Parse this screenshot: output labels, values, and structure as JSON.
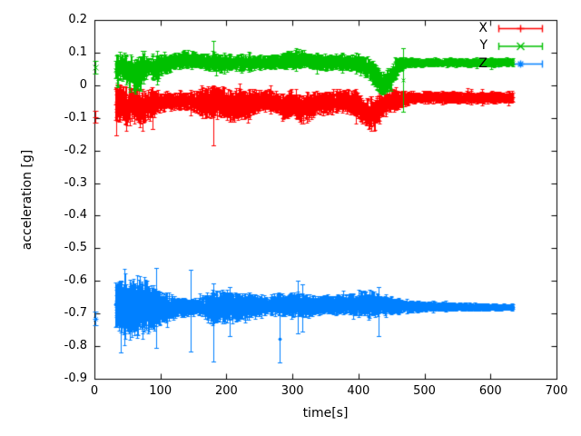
{
  "colors": {
    "background": "#ffffff",
    "axis": "#000000",
    "text": "#000000"
  },
  "chart_data": {
    "type": "scatter-errorbars",
    "title": "",
    "xlabel": "time[s]",
    "ylabel": "acceleration [g]",
    "xlim": [
      0,
      700
    ],
    "ylim": [
      -0.9,
      0.2
    ],
    "x_ticks": [
      0,
      100,
      200,
      300,
      400,
      500,
      600,
      700
    ],
    "x_tick_labels": [
      "0",
      "100",
      "200",
      "300",
      "400",
      "500",
      "600",
      "700"
    ],
    "y_ticks": [
      0.2,
      0.1,
      0,
      -0.1,
      -0.2,
      -0.3,
      -0.4,
      -0.5,
      -0.6,
      -0.7,
      -0.8,
      -0.9
    ],
    "y_tick_labels": [
      "0.2",
      "0.1",
      "0",
      "-0.1",
      "-0.2",
      "-0.3",
      "-0.4",
      "-0.5",
      "-0.6",
      "-0.7",
      "-0.8",
      "-0.9"
    ],
    "grid": false,
    "legend": {
      "position": "top-right-inside",
      "entries": [
        "X",
        "Y",
        "Z"
      ]
    },
    "t_range": [
      32,
      634
    ],
    "series": [
      {
        "name": "X",
        "color": "#ff0000",
        "marker": "plus",
        "style": "errorbars",
        "approx_mean": -0.05,
        "start_point": {
          "t": 1,
          "value": -0.097,
          "err": 0.018
        },
        "band": [
          [
            32,
            -0.06,
            0.06
          ],
          [
            40,
            -0.055,
            0.05
          ],
          [
            50,
            -0.07,
            0.05
          ],
          [
            60,
            -0.05,
            0.045
          ],
          [
            72,
            -0.075,
            0.05
          ],
          [
            82,
            -0.055,
            0.045
          ],
          [
            95,
            -0.05,
            0.032
          ],
          [
            110,
            -0.048,
            0.022
          ],
          [
            130,
            -0.048,
            0.02
          ],
          [
            150,
            -0.05,
            0.028
          ],
          [
            165,
            -0.052,
            0.038
          ],
          [
            180,
            -0.05,
            0.042
          ],
          [
            195,
            -0.055,
            0.04
          ],
          [
            208,
            -0.065,
            0.045
          ],
          [
            220,
            -0.055,
            0.038
          ],
          [
            235,
            -0.06,
            0.04
          ],
          [
            248,
            -0.05,
            0.028
          ],
          [
            262,
            -0.045,
            0.025
          ],
          [
            275,
            -0.055,
            0.032
          ],
          [
            288,
            -0.07,
            0.035
          ],
          [
            300,
            -0.055,
            0.035
          ],
          [
            313,
            -0.075,
            0.037
          ],
          [
            325,
            -0.065,
            0.035
          ],
          [
            340,
            -0.05,
            0.03
          ],
          [
            355,
            -0.055,
            0.03
          ],
          [
            370,
            -0.048,
            0.028
          ],
          [
            385,
            -0.05,
            0.03
          ],
          [
            398,
            -0.06,
            0.038
          ],
          [
            410,
            -0.085,
            0.042
          ],
          [
            422,
            -0.09,
            0.04
          ],
          [
            432,
            -0.065,
            0.035
          ],
          [
            445,
            -0.05,
            0.03
          ],
          [
            458,
            -0.045,
            0.027
          ],
          [
            468,
            -0.042,
            0.02
          ],
          [
            480,
            -0.038,
            0.016
          ],
          [
            520,
            -0.036,
            0.015
          ],
          [
            560,
            -0.037,
            0.015
          ],
          [
            600,
            -0.038,
            0.015
          ],
          [
            634,
            -0.037,
            0.014
          ]
        ],
        "spikes": [
          [
            33,
            -0.155,
            -0.005
          ],
          [
            88,
            -0.135,
            -0.02
          ],
          [
            180,
            -0.185,
            -0.01
          ],
          [
            420,
            -0.14,
            -0.035
          ]
        ]
      },
      {
        "name": "Y",
        "color": "#00c000",
        "marker": "cross",
        "style": "errorbars",
        "approx_mean": 0.07,
        "start_point": {
          "t": 1,
          "value": 0.055,
          "err": 0.02
        },
        "band": [
          [
            32,
            0.05,
            0.055
          ],
          [
            40,
            0.06,
            0.038
          ],
          [
            50,
            0.05,
            0.042
          ],
          [
            60,
            0.028,
            0.05
          ],
          [
            70,
            0.038,
            0.048
          ],
          [
            80,
            0.058,
            0.032
          ],
          [
            92,
            0.05,
            0.035
          ],
          [
            105,
            0.065,
            0.028
          ],
          [
            120,
            0.072,
            0.022
          ],
          [
            135,
            0.078,
            0.022
          ],
          [
            150,
            0.08,
            0.02
          ],
          [
            163,
            0.073,
            0.02
          ],
          [
            178,
            0.07,
            0.025
          ],
          [
            195,
            0.068,
            0.022
          ],
          [
            215,
            0.07,
            0.02
          ],
          [
            235,
            0.068,
            0.02
          ],
          [
            255,
            0.07,
            0.018
          ],
          [
            275,
            0.071,
            0.02
          ],
          [
            295,
            0.077,
            0.022
          ],
          [
            312,
            0.082,
            0.022
          ],
          [
            328,
            0.073,
            0.02
          ],
          [
            345,
            0.07,
            0.02
          ],
          [
            362,
            0.071,
            0.02
          ],
          [
            380,
            0.07,
            0.02
          ],
          [
            395,
            0.068,
            0.022
          ],
          [
            408,
            0.062,
            0.026
          ],
          [
            420,
            0.045,
            0.032
          ],
          [
            432,
            0.012,
            0.032
          ],
          [
            440,
            0.002,
            0.028
          ],
          [
            450,
            0.028,
            0.035
          ],
          [
            460,
            0.058,
            0.025
          ],
          [
            470,
            0.068,
            0.014
          ],
          [
            500,
            0.07,
            0.011
          ],
          [
            540,
            0.071,
            0.011
          ],
          [
            580,
            0.07,
            0.011
          ],
          [
            634,
            0.072,
            0.011
          ]
        ],
        "spikes": [
          [
            73,
            0.02,
            0.105
          ],
          [
            180,
            0.045,
            0.135
          ],
          [
            310,
            0.06,
            0.112
          ],
          [
            468,
            -0.082,
            0.115
          ]
        ]
      },
      {
        "name": "Z",
        "color": "#0080ff",
        "marker": "asterisk",
        "style": "errorbars",
        "approx_mean": -0.68,
        "start_point": {
          "t": 1,
          "value": -0.715,
          "err": 0.022
        },
        "band": [
          [
            32,
            -0.68,
            0.06
          ],
          [
            42,
            -0.682,
            0.075
          ],
          [
            52,
            -0.68,
            0.072
          ],
          [
            62,
            -0.683,
            0.07
          ],
          [
            72,
            -0.68,
            0.068
          ],
          [
            82,
            -0.682,
            0.065
          ],
          [
            92,
            -0.68,
            0.055
          ],
          [
            102,
            -0.68,
            0.042
          ],
          [
            115,
            -0.681,
            0.032
          ],
          [
            130,
            -0.68,
            0.024
          ],
          [
            145,
            -0.68,
            0.022
          ],
          [
            160,
            -0.678,
            0.024
          ],
          [
            172,
            -0.68,
            0.035
          ],
          [
            185,
            -0.68,
            0.045
          ],
          [
            198,
            -0.678,
            0.042
          ],
          [
            210,
            -0.677,
            0.038
          ],
          [
            222,
            -0.68,
            0.036
          ],
          [
            235,
            -0.677,
            0.032
          ],
          [
            250,
            -0.674,
            0.026
          ],
          [
            265,
            -0.676,
            0.025
          ],
          [
            280,
            -0.672,
            0.03
          ],
          [
            292,
            -0.676,
            0.026
          ],
          [
            305,
            -0.671,
            0.035
          ],
          [
            318,
            -0.674,
            0.028
          ],
          [
            332,
            -0.676,
            0.026
          ],
          [
            348,
            -0.671,
            0.024
          ],
          [
            362,
            -0.673,
            0.026
          ],
          [
            378,
            -0.671,
            0.024
          ],
          [
            392,
            -0.673,
            0.028
          ],
          [
            405,
            -0.67,
            0.032
          ],
          [
            418,
            -0.671,
            0.035
          ],
          [
            430,
            -0.673,
            0.027
          ],
          [
            443,
            -0.676,
            0.022
          ],
          [
            456,
            -0.676,
            0.019
          ],
          [
            470,
            -0.677,
            0.016
          ],
          [
            495,
            -0.678,
            0.013
          ],
          [
            525,
            -0.678,
            0.011
          ],
          [
            555,
            -0.679,
            0.01
          ],
          [
            590,
            -0.68,
            0.009
          ],
          [
            634,
            -0.68,
            0.008
          ]
        ],
        "spikes": [
          [
            40,
            -0.82,
            -0.6
          ],
          [
            94,
            -0.805,
            -0.56
          ],
          [
            146,
            -0.816,
            -0.565
          ],
          [
            180,
            -0.847,
            -0.607
          ],
          [
            205,
            -0.77,
            -0.62
          ],
          [
            280,
            -0.85,
            -0.705
          ],
          [
            308,
            -0.76,
            -0.6
          ],
          [
            315,
            -0.755,
            -0.61
          ],
          [
            430,
            -0.77,
            -0.62
          ]
        ]
      }
    ]
  }
}
